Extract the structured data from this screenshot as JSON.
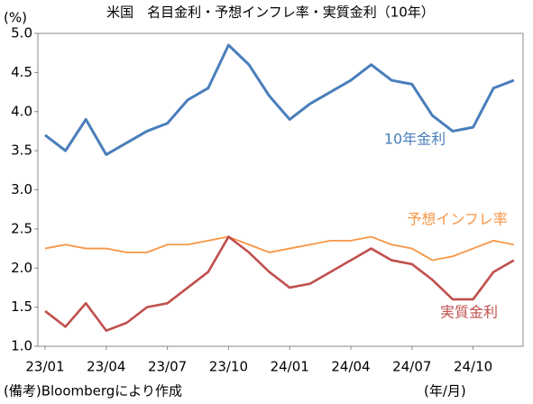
{
  "chart_data": {
    "type": "line",
    "title": "米国　名目金利・予想インフレ率・実質金利（10年）",
    "y_label": "(%)",
    "x_label": "(年/月)",
    "source": "(備考)Bloombergにより作成",
    "x": [
      "23/01",
      "23/02",
      "23/03",
      "23/04",
      "23/05",
      "23/06",
      "23/07",
      "23/08",
      "23/09",
      "23/10",
      "23/11",
      "23/12",
      "24/01",
      "24/02",
      "24/03",
      "24/04",
      "24/05",
      "24/06",
      "24/07",
      "24/08",
      "24/09",
      "24/10",
      "24/11",
      "24/12"
    ],
    "xticks": [
      "23/01",
      "23/04",
      "23/07",
      "23/10",
      "24/01",
      "24/04",
      "24/07",
      "24/10"
    ],
    "ylim": [
      1,
      5
    ],
    "yticks": [
      {
        "value": 1,
        "label": "1.0"
      },
      1.5,
      {
        "value": 2,
        "label": "2.0"
      },
      2.5,
      {
        "value": 3,
        "label": "3.0"
      },
      3.5,
      {
        "value": 4,
        "label": "4.0"
      },
      4.5,
      {
        "value": 5,
        "label": "5.0"
      }
    ],
    "grid": false,
    "series": [
      {
        "name": "10年金利",
        "color": "#4a7ebb",
        "values": [
          3.7,
          3.5,
          3.9,
          3.45,
          3.6,
          3.75,
          3.85,
          4.15,
          4.3,
          4.85,
          4.6,
          4.2,
          3.9,
          4.1,
          4.25,
          4.4,
          4.6,
          4.4,
          4.35,
          3.95,
          3.75,
          3.8,
          4.3,
          4.4
        ]
      },
      {
        "name": "予想インフレ率",
        "color": "#f79646",
        "values": [
          2.25,
          2.3,
          2.25,
          2.25,
          2.2,
          2.2,
          2.3,
          2.3,
          2.35,
          2.4,
          2.3,
          2.2,
          2.25,
          2.3,
          2.35,
          2.35,
          2.4,
          2.3,
          2.25,
          2.1,
          2.15,
          2.25,
          2.35,
          2.3
        ]
      },
      {
        "name": "実質金利",
        "color": "#c0504d",
        "values": [
          1.45,
          1.25,
          1.55,
          1.2,
          1.3,
          1.5,
          1.55,
          1.75,
          1.95,
          2.4,
          2.2,
          1.95,
          1.75,
          1.8,
          1.95,
          2.1,
          2.25,
          2.1,
          2.05,
          1.85,
          1.6,
          1.6,
          1.95,
          2.1
        ]
      }
    ]
  }
}
